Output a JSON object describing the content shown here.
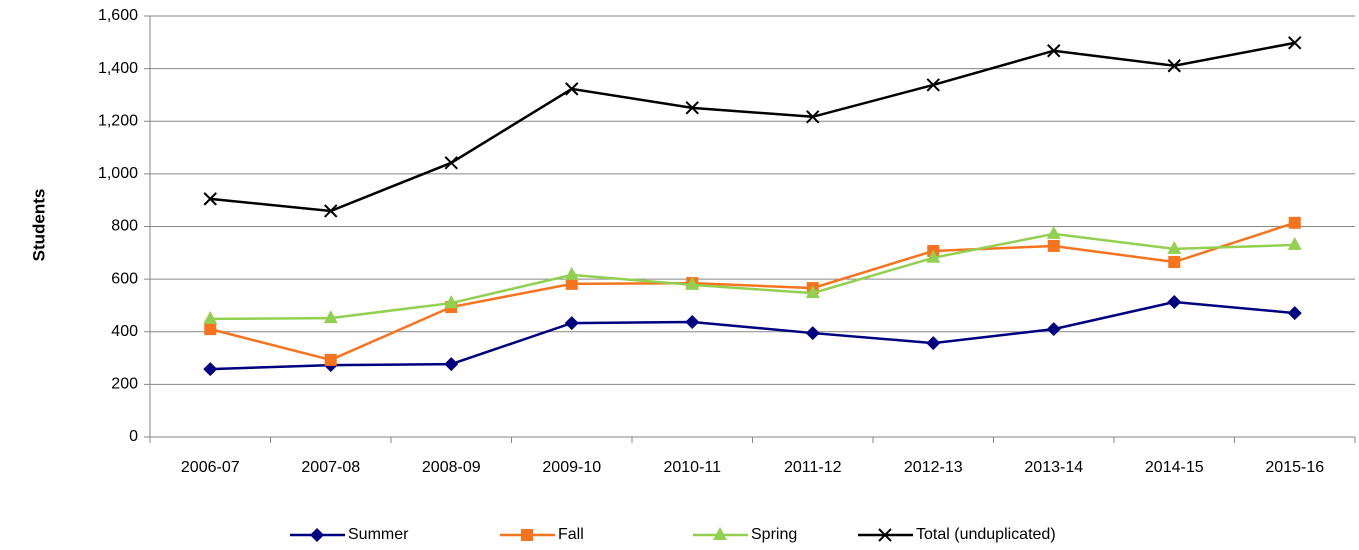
{
  "chart_data": {
    "type": "line",
    "y_label": "Students",
    "categories": [
      "2006-07",
      "2007-08",
      "2008-09",
      "2009-10",
      "2010-11",
      "2011-12",
      "2012-13",
      "2013-14",
      "2014-15",
      "2015-16"
    ],
    "series": [
      {
        "name": "Summer",
        "color": "#000080",
        "marker": "diamond",
        "values": [
          258,
          273,
          277,
          433,
          437,
          395,
          357,
          410,
          513,
          471
        ]
      },
      {
        "name": "Fall",
        "color": "#f7741f",
        "marker": "square",
        "values": [
          410,
          293,
          494,
          582,
          585,
          566,
          707,
          726,
          665,
          814
        ]
      },
      {
        "name": "Spring",
        "color": "#92d050",
        "marker": "triangle",
        "values": [
          449,
          452,
          509,
          616,
          578,
          547,
          681,
          772,
          715,
          730
        ]
      },
      {
        "name": "Total (unduplicated)",
        "color": "#000000",
        "marker": "x",
        "values": [
          905,
          859,
          1042,
          1323,
          1251,
          1217,
          1338,
          1468,
          1411,
          1498
        ]
      }
    ],
    "ylim": [
      0,
      1600
    ],
    "yticks": [
      0,
      200,
      400,
      600,
      800,
      {
        "value": 1000,
        "label": "1,000"
      },
      {
        "value": 1200,
        "label": "1,200"
      },
      {
        "value": 1400,
        "label": "1,400"
      },
      {
        "value": 1600,
        "label": "1,600"
      }
    ],
    "grid": true,
    "legend": "bottom"
  }
}
